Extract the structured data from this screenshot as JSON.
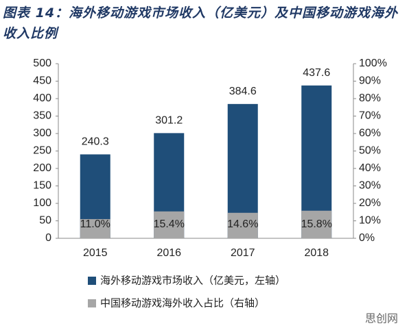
{
  "chart_data": {
    "type": "bar",
    "title": "图表 14：海外移动游戏市场收入（亿美元）及中国移动游戏海外收入比例",
    "categories": [
      "2015",
      "2016",
      "2017",
      "2018"
    ],
    "series": [
      {
        "name": "海外移动游戏市场收入（亿美元，左轴）",
        "color": "#1f4e79",
        "values": [
          240.3,
          301.2,
          384.6,
          437.6
        ]
      },
      {
        "name": "中国移动游戏海外收入占比（右轴）",
        "color": "#a6a6a6",
        "axis": "y2",
        "values": [
          11.0,
          15.4,
          14.6,
          15.8
        ],
        "value_labels": [
          "11.0%",
          "15.4%",
          "14.6%",
          "15.8%"
        ]
      }
    ],
    "ylim": [
      0,
      500
    ],
    "yticks": [
      0,
      50,
      100,
      150,
      200,
      250,
      300,
      350,
      400,
      450,
      500
    ],
    "y2lim": [
      0,
      100
    ],
    "y2ticks": [
      {
        "value": 0,
        "label": "0%"
      },
      {
        "value": 10,
        "label": "10%"
      },
      {
        "value": 20,
        "label": "20%"
      },
      {
        "value": 30,
        "label": "30%"
      },
      {
        "value": 40,
        "label": "40%"
      },
      {
        "value": 50,
        "label": "50%"
      },
      {
        "value": 60,
        "label": "60%"
      },
      {
        "value": 70,
        "label": "70%"
      },
      {
        "value": 80,
        "label": "80%"
      },
      {
        "value": 90,
        "label": "90%"
      },
      {
        "value": 100,
        "label": "100%"
      }
    ],
    "grid": false,
    "watermark": "思创网"
  }
}
